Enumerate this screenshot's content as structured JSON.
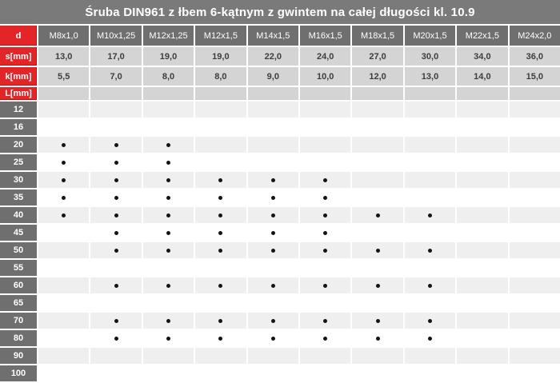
{
  "title": "Śruba DIN961 z łbem 6-kątnym z gwintem na całej długości kl. 10.9",
  "colors": {
    "title_bar": "#7a7a7a",
    "header_cell": "#6f6f6f",
    "label_red": "#e42528",
    "value_cell": "#d4d4d4",
    "stripe_gray": "#efefef",
    "stripe_white": "#ffffff",
    "dot": "#141414"
  },
  "table": {
    "corner_label": "d",
    "columns": [
      "M8x1,0",
      "M10x1,25",
      "M12x1,25",
      "M12x1,5",
      "M14x1,5",
      "M16x1,5",
      "M18x1,5",
      "M20x1,5",
      "M22x1,5",
      "M24x2,0"
    ],
    "s_row": {
      "label": "s[mm]",
      "values": [
        "13,0",
        "17,0",
        "19,0",
        "19,0",
        "22,0",
        "24,0",
        "27,0",
        "30,0",
        "34,0",
        "36,0"
      ]
    },
    "k_row": {
      "label": "k[mm]",
      "values": [
        "5,5",
        "7,0",
        "8,0",
        "8,0",
        "9,0",
        "10,0",
        "12,0",
        "13,0",
        "14,0",
        "15,0"
      ]
    },
    "l_header_label": "L[mm]",
    "dot_glyph": "•",
    "length_rows": [
      {
        "label": "12",
        "available": [
          0,
          0,
          0,
          0,
          0,
          0,
          0,
          0,
          0,
          0
        ]
      },
      {
        "label": "16",
        "available": [
          0,
          0,
          0,
          0,
          0,
          0,
          0,
          0,
          0,
          0
        ]
      },
      {
        "label": "20",
        "available": [
          1,
          1,
          1,
          0,
          0,
          0,
          0,
          0,
          0,
          0
        ]
      },
      {
        "label": "25",
        "available": [
          1,
          1,
          1,
          0,
          0,
          0,
          0,
          0,
          0,
          0
        ]
      },
      {
        "label": "30",
        "available": [
          1,
          1,
          1,
          1,
          1,
          1,
          0,
          0,
          0,
          0
        ]
      },
      {
        "label": "35",
        "available": [
          1,
          1,
          1,
          1,
          1,
          1,
          0,
          0,
          0,
          0
        ]
      },
      {
        "label": "40",
        "available": [
          1,
          1,
          1,
          1,
          1,
          1,
          1,
          1,
          0,
          0
        ]
      },
      {
        "label": "45",
        "available": [
          0,
          1,
          1,
          1,
          1,
          1,
          0,
          0,
          0,
          0
        ]
      },
      {
        "label": "50",
        "available": [
          0,
          1,
          1,
          1,
          1,
          1,
          1,
          1,
          0,
          0
        ]
      },
      {
        "label": "55",
        "available": [
          0,
          0,
          0,
          0,
          0,
          0,
          0,
          0,
          0,
          0
        ]
      },
      {
        "label": "60",
        "available": [
          0,
          1,
          1,
          1,
          1,
          1,
          1,
          1,
          0,
          0
        ]
      },
      {
        "label": "65",
        "available": [
          0,
          0,
          0,
          0,
          0,
          0,
          0,
          0,
          0,
          0
        ]
      },
      {
        "label": "70",
        "available": [
          0,
          1,
          1,
          1,
          1,
          1,
          1,
          1,
          0,
          0
        ]
      },
      {
        "label": "80",
        "available": [
          0,
          1,
          1,
          1,
          1,
          1,
          1,
          1,
          0,
          0
        ]
      },
      {
        "label": "90",
        "available": [
          0,
          0,
          0,
          0,
          0,
          0,
          0,
          0,
          0,
          0
        ]
      },
      {
        "label": "100",
        "available": [
          0,
          0,
          0,
          0,
          0,
          0,
          0,
          0,
          0,
          0
        ]
      }
    ]
  }
}
